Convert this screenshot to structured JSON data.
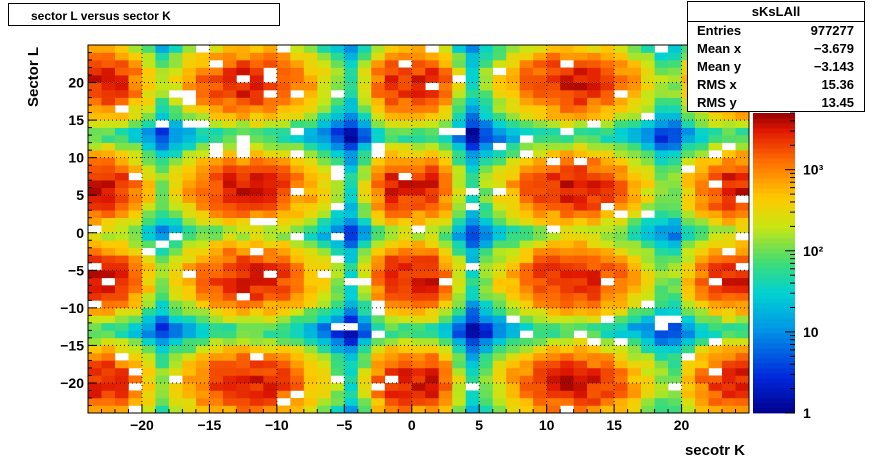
{
  "title": "sector L versus sector K",
  "stats": {
    "name": "sKsLAll",
    "rows": [
      {
        "label": "Entries",
        "value": "977277"
      },
      {
        "label": "Mean x",
        "value": "−3.679"
      },
      {
        "label": "Mean y",
        "value": "−3.143"
      },
      {
        "label": "RMS x",
        "value": "15.36"
      },
      {
        "label": "RMS y",
        "value": "13.45"
      }
    ]
  },
  "chart_data": {
    "type": "heatmap",
    "title": "sector L versus sector K",
    "xlabel": "secotr K",
    "ylabel": "Sector L",
    "xlim": [
      -24,
      25
    ],
    "ylim": [
      -24,
      25
    ],
    "xticks": [
      -20,
      -15,
      -10,
      -5,
      0,
      5,
      10,
      15,
      20
    ],
    "yticks": [
      -20,
      -15,
      -10,
      -5,
      0,
      5,
      10,
      15,
      20
    ],
    "x_tick_labels": [
      "−20",
      "−15",
      "−10",
      "−5",
      "0",
      "5",
      "10",
      "15",
      "20"
    ],
    "y_tick_labels": [
      "−20",
      "−15",
      "−10",
      "−5",
      "0",
      "5",
      "10",
      "15",
      "20"
    ],
    "grid": true,
    "colorscale": "log",
    "z_range": [
      1,
      5000
    ],
    "colorbar_ticks": [
      {
        "value": 1,
        "label": "1"
      },
      {
        "value": 10,
        "label": "10"
      },
      {
        "value": 100,
        "label": "10²"
      },
      {
        "value": 1000,
        "label": "10³"
      }
    ],
    "x_clusters": [
      {
        "center": -23,
        "width": 1.8
      },
      {
        "center": -12,
        "width": 2.6
      },
      {
        "center": -1,
        "width": 1.1
      },
      {
        "center": 1,
        "width": 1.1
      },
      {
        "center": 12,
        "width": 2.6
      },
      {
        "center": 24,
        "width": 1.8
      }
    ],
    "y_clusters": [
      {
        "center": -20,
        "width": 2.4
      },
      {
        "center": -6,
        "width": 2.4
      },
      {
        "center": 6,
        "width": 2.4
      },
      {
        "center": 20,
        "width": 2.4
      }
    ],
    "peak_count": 3200,
    "background_rows": [
      -22,
      -9,
      3,
      4,
      17
    ],
    "background_cols": [
      -17,
      -8,
      6,
      18
    ]
  }
}
